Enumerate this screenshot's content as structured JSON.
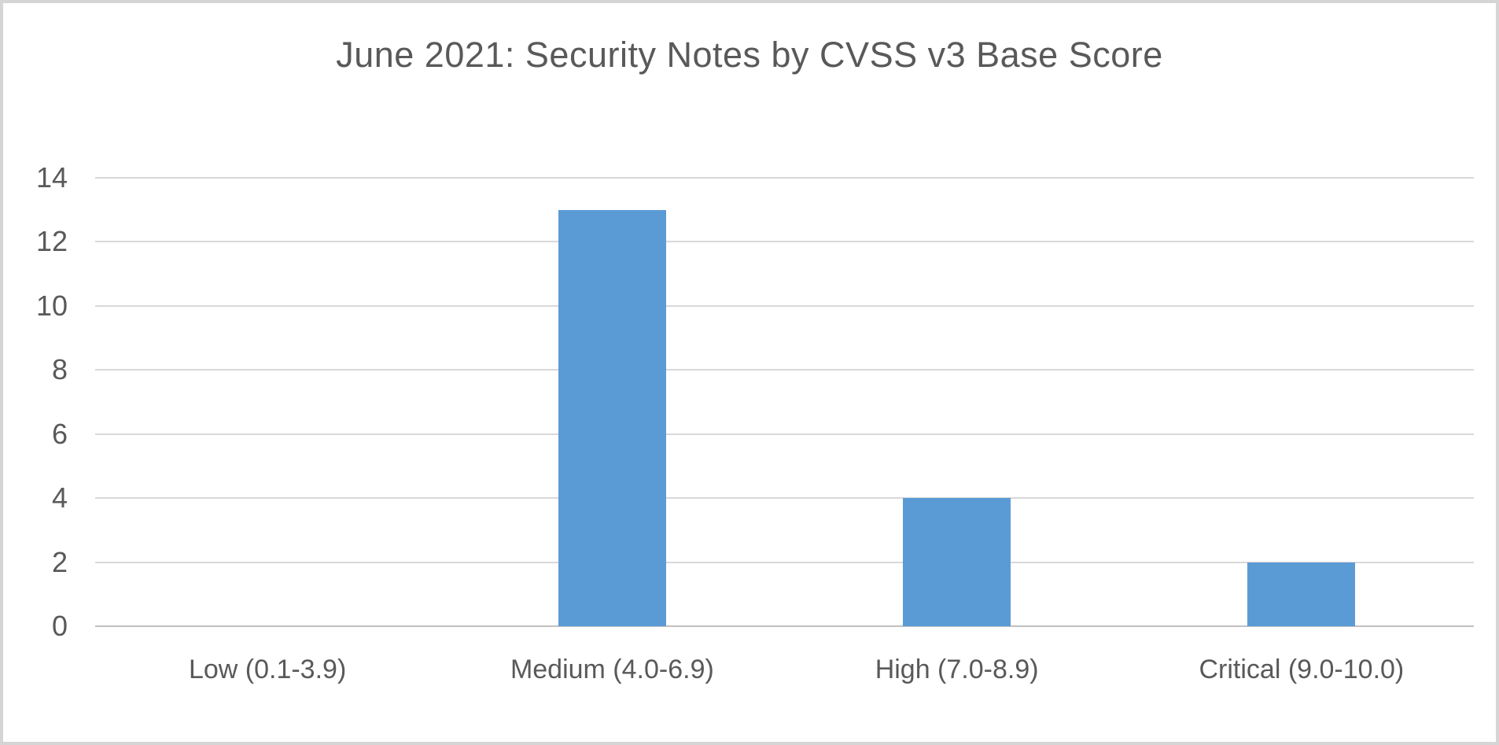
{
  "chart_data": {
    "type": "bar",
    "title": "June 2021: Security Notes by CVSS v3 Base Score",
    "categories": [
      "Low (0.1-3.9)",
      "Medium (4.0-6.9)",
      "High (7.0-8.9)",
      "Critical (9.0-10.0)"
    ],
    "values": [
      0,
      13,
      4,
      2
    ],
    "y_ticks": [
      0,
      2,
      4,
      6,
      8,
      10,
      12,
      14
    ],
    "ylim": [
      0,
      14
    ],
    "xlabel": "",
    "ylabel": "",
    "grid": true,
    "legend": false,
    "colors": {
      "bar": "#5B9BD5",
      "gridline": "#D9D9D9",
      "axis_line": "#C0C0C0",
      "text": "#595959",
      "background": "#FFFFFF",
      "frame_border": "#D5D5D5"
    }
  }
}
